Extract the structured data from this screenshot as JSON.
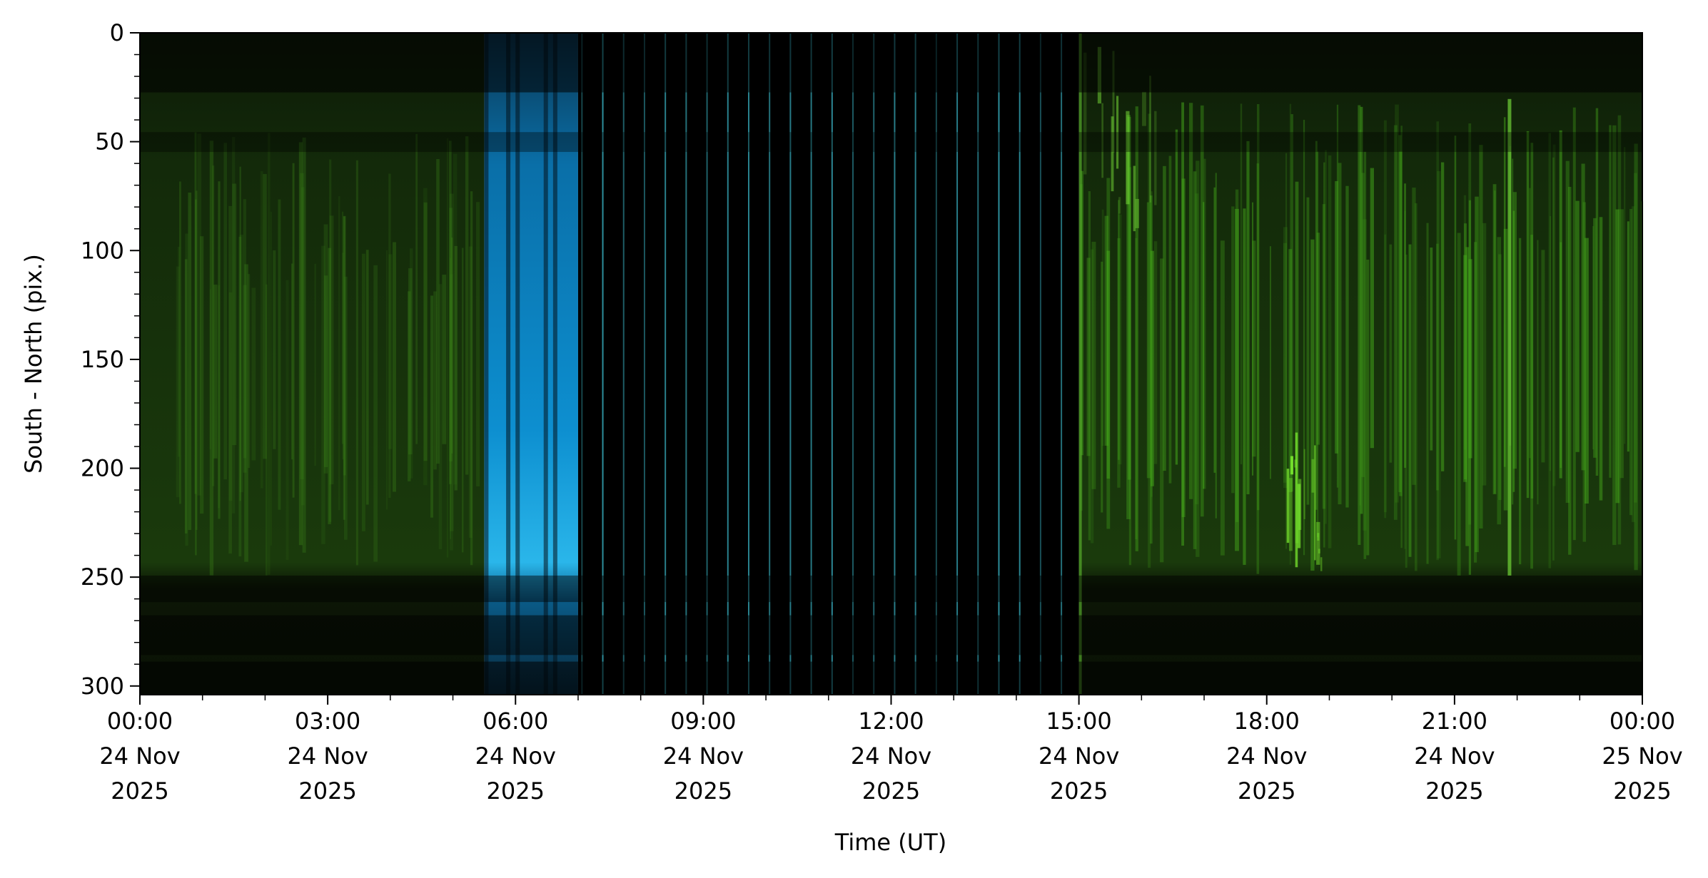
{
  "chart_data": {
    "type": "keogram",
    "x_label": "Time (UT)",
    "y_label": "South - North (pix.)",
    "xlim": [
      0,
      24
    ],
    "xticks": [
      {
        "value": 0,
        "label": [
          "00:00",
          "24 Nov",
          "2025"
        ]
      },
      {
        "value": 3,
        "label": [
          "03:00",
          "24 Nov",
          "2025"
        ]
      },
      {
        "value": 6,
        "label": [
          "06:00",
          "24 Nov",
          "2025"
        ]
      },
      {
        "value": 9,
        "label": [
          "09:00",
          "24 Nov",
          "2025"
        ]
      },
      {
        "value": 12,
        "label": [
          "12:00",
          "24 Nov",
          "2025"
        ]
      },
      {
        "value": 15,
        "label": [
          "15:00",
          "24 Nov",
          "2025"
        ]
      },
      {
        "value": 18,
        "label": [
          "18:00",
          "24 Nov",
          "2025"
        ]
      },
      {
        "value": 21,
        "label": [
          "21:00",
          "24 Nov",
          "2025"
        ]
      },
      {
        "value": 24,
        "label": [
          "00:00",
          "25 Nov",
          "2025"
        ]
      }
    ],
    "xminorticks": [
      1,
      2,
      4,
      5,
      7,
      8,
      10,
      11,
      13,
      14,
      16,
      17,
      19,
      20,
      22,
      23
    ],
    "ylim": [
      304,
      0
    ],
    "yticks": [
      0,
      50,
      100,
      150,
      200,
      250,
      300
    ],
    "yminorticks": [
      10,
      20,
      30,
      40,
      60,
      70,
      80,
      90,
      110,
      120,
      130,
      140,
      160,
      170,
      180,
      190,
      210,
      220,
      230,
      240,
      260,
      270,
      280,
      290
    ]
  }
}
